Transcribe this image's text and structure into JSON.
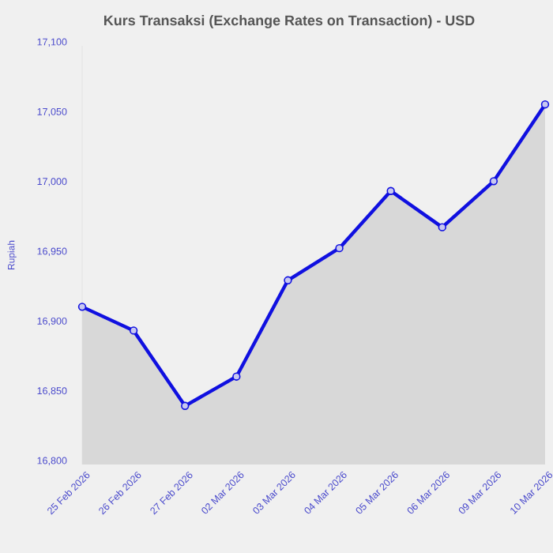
{
  "chart_data": {
    "type": "area",
    "title": "Kurs Transaksi (Exchange Rates on Transaction) - USD",
    "ylabel": "Rupiah",
    "categories": [
      "25 Feb 2026",
      "26 Feb 2026",
      "27 Feb 2026",
      "02 Mar 2026",
      "03 Mar 2026",
      "04 Mar 2026",
      "05 Mar 2026",
      "06 Mar 2026",
      "09 Mar 2026",
      "10 Mar 2026"
    ],
    "series": [
      {
        "color": "#1010e0",
        "values": [
          16913,
          16896,
          16842,
          16863,
          16932,
          16955,
          16996,
          16970,
          17003,
          17058
        ]
      }
    ],
    "ylim": [
      16800,
      17100
    ],
    "yticks": [
      {
        "value": 16800,
        "label": "16,800"
      },
      {
        "value": 16850,
        "label": "16,850"
      },
      {
        "value": 16900,
        "label": "16,900"
      },
      {
        "value": 16950,
        "label": "16,950"
      },
      {
        "value": 17000,
        "label": "17,000"
      },
      {
        "value": 17050,
        "label": "17,050"
      },
      {
        "value": 17100,
        "label": "17,100"
      }
    ],
    "marker": "circle",
    "line_style": "solid",
    "grid": false
  }
}
